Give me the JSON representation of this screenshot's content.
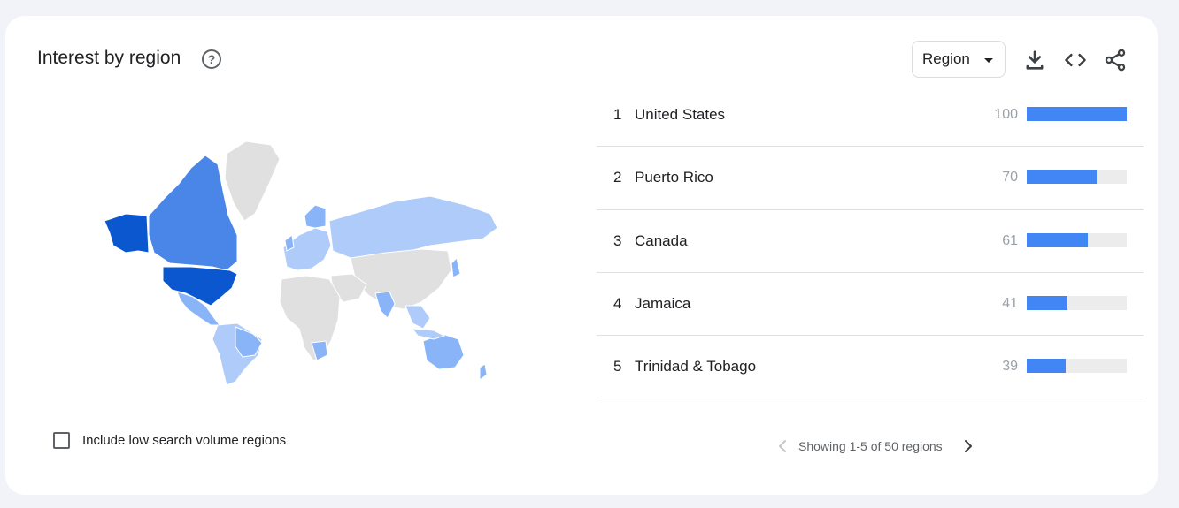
{
  "header": {
    "title": "Interest by region",
    "help_icon": "help-circle-icon",
    "region_select": {
      "selected": "Region"
    },
    "actions": [
      "download-icon",
      "embed-code-icon",
      "share-icon"
    ]
  },
  "map": {
    "colors": {
      "highest": "#0b57d0",
      "high": "#4a86e8",
      "medium": "#8ab4f8",
      "low": "#aecbfa",
      "none": "#e0e0e0"
    }
  },
  "options": {
    "low_volume_label": "Include low search volume regions",
    "low_volume_checked": false
  },
  "regions": [
    {
      "rank": "1",
      "name": "United States",
      "value": "100",
      "fraction": 1.0
    },
    {
      "rank": "2",
      "name": "Puerto Rico",
      "value": "70",
      "fraction": 0.7
    },
    {
      "rank": "3",
      "name": "Canada",
      "value": "61",
      "fraction": 0.61
    },
    {
      "rank": "4",
      "name": "Jamaica",
      "value": "41",
      "fraction": 0.41
    },
    {
      "rank": "5",
      "name": "Trinidad & Tobago",
      "value": "39",
      "fraction": 0.39
    }
  ],
  "pagination": {
    "text": "Showing 1-5 of 50 regions"
  },
  "accent_color": "#4285f4"
}
